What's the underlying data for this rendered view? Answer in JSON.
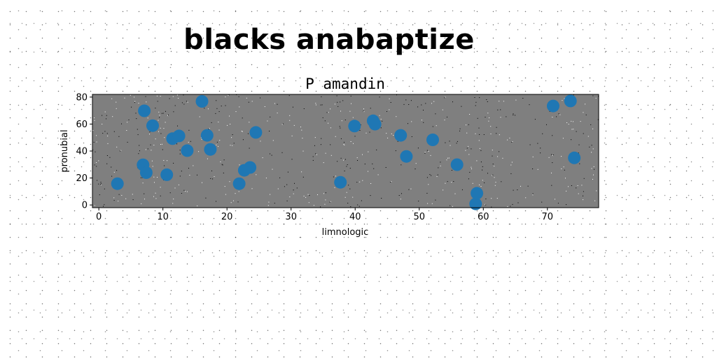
{
  "figure": {
    "title": "blacks anabaptize"
  },
  "chart_data": {
    "type": "scatter",
    "title": "P amandin",
    "xlabel": "limnologic",
    "ylabel": "pronubial",
    "xlim": [
      -1,
      78
    ],
    "ylim": [
      -2,
      82
    ],
    "xticks": [
      0,
      10,
      20,
      30,
      40,
      50,
      60,
      70
    ],
    "yticks": [
      0,
      20,
      40,
      60,
      80
    ],
    "grid": false,
    "colors": {
      "marker": "#1f77b4",
      "plot_background": "#7f7f7f"
    },
    "series": [
      {
        "x": [
          2.9,
          7.1,
          8.4,
          6.9,
          7.4,
          10.6,
          11.5,
          12.5,
          13.8,
          16.1,
          16.9,
          17.4,
          21.9,
          22.7,
          23.6,
          24.5,
          37.7,
          39.9,
          42.8,
          43.1,
          47.1,
          48.0,
          52.1,
          55.9,
          58.8,
          59.0,
          70.9,
          73.6,
          74.2
        ],
        "y": [
          15.8,
          69.8,
          58.8,
          29.8,
          24.0,
          22.4,
          49.2,
          51.2,
          40.3,
          76.8,
          51.6,
          41.2,
          15.8,
          25.7,
          27.8,
          53.8,
          16.8,
          58.5,
          62.4,
          59.9,
          51.6,
          36.0,
          48.3,
          29.9,
          0.8,
          8.7,
          73.4,
          77.1,
          34.9
        ]
      }
    ]
  }
}
